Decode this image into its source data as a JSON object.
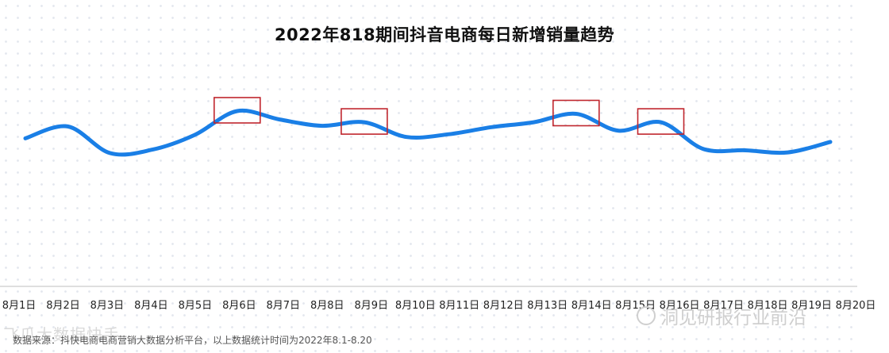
{
  "title": "2022年818期间抖音电商每日新增销量趋势",
  "source": "数据来源：抖快电商电商营销大数据分析平台，以上数据统计时间为2022年8.1-8.20",
  "watermark_left": "飞瓜大数据快手",
  "watermark_right": "洞见研报行业前沿",
  "colors": {
    "line": "#1a7fe6",
    "highlight": "#c0262d",
    "axis": "#bfbfbf"
  },
  "chart_data": {
    "type": "line",
    "title": "2022年818期间抖音电商每日新增销量趋势",
    "xlabel": "",
    "ylabel": "",
    "y_axis_shown": false,
    "grid": false,
    "legend": "none",
    "categories": [
      "8月1日",
      "8月2日",
      "8月3日",
      "8月4日",
      "8月5日",
      "8月6日",
      "8月7日",
      "8月8日",
      "8月9日",
      "8月10日",
      "8月11日",
      "8月12日",
      "8月13日",
      "8月14日",
      "8月15日",
      "8月16日",
      "8月17日",
      "8月18日",
      "8月19日",
      "8月20日"
    ],
    "values": [
      61,
      78,
      40,
      45,
      66,
      100,
      88,
      79,
      84,
      63,
      67,
      77,
      84,
      96,
      72,
      84,
      46,
      44,
      41,
      56
    ],
    "highlighted_categories": [
      "8月6日",
      "8月9日",
      "8月14日",
      "8月16日"
    ]
  }
}
